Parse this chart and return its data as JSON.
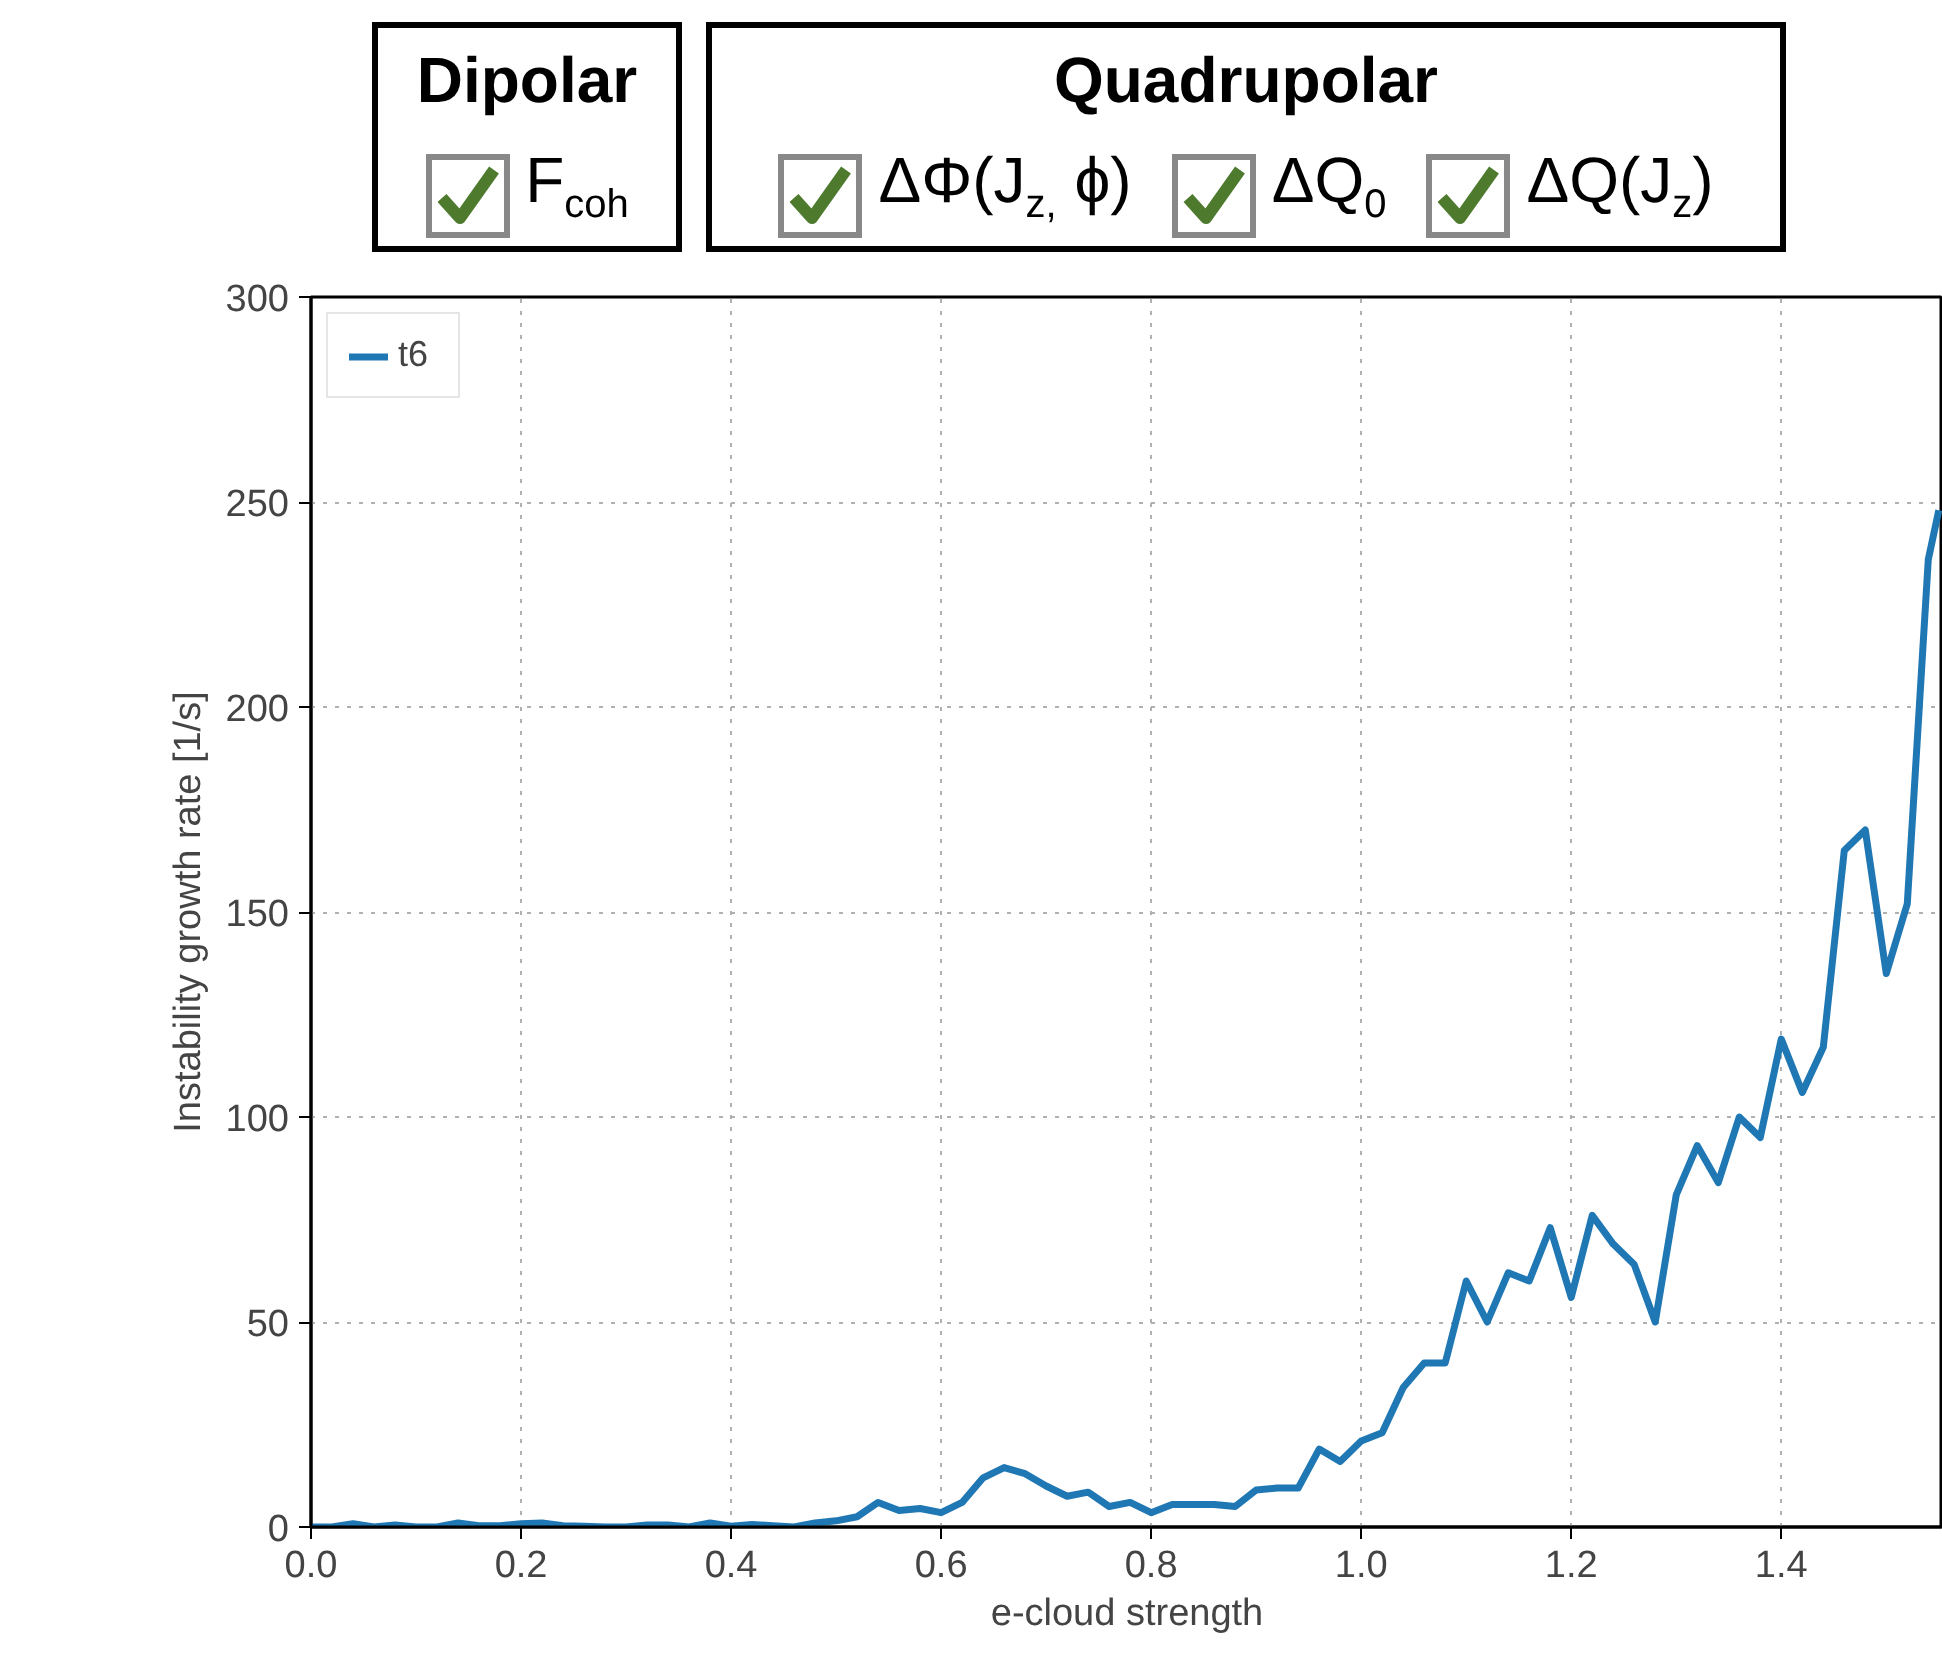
{
  "chart_data": {
    "type": "line",
    "xlabel": "e-cloud strength",
    "ylabel": "Instability growth rate [1/s]",
    "annotations": [
      "Dipolar",
      "F$_{coh}$",
      "Quadrupolar",
      "ΔΦ(J$_{z,}$ ϕ)",
      "ΔQ$_{0}$",
      "ΔQ(J$_{z}$)"
    ],
    "x": [
      0.0,
      0.02,
      0.04,
      0.06,
      0.08,
      0.1,
      0.12,
      0.14,
      0.16,
      0.18,
      0.2,
      0.22,
      0.24,
      0.26,
      0.28,
      0.3,
      0.32,
      0.34,
      0.36,
      0.38,
      0.4,
      0.42,
      0.44,
      0.46,
      0.48,
      0.5,
      0.52,
      0.54,
      0.56,
      0.58,
      0.6,
      0.62,
      0.64,
      0.66,
      0.68,
      0.7,
      0.72,
      0.74,
      0.76,
      0.78,
      0.8,
      0.82,
      0.84,
      0.86,
      0.88,
      0.9,
      0.92,
      0.94,
      0.96,
      0.98,
      1.0,
      1.02,
      1.04,
      1.06,
      1.08,
      1.1,
      1.12,
      1.14,
      1.16,
      1.18,
      1.2,
      1.22,
      1.24,
      1.26,
      1.28,
      1.3,
      1.32,
      1.34,
      1.36,
      1.38,
      1.4,
      1.42,
      1.44,
      1.46,
      1.48,
      1.5,
      1.52,
      1.54,
      1.55
    ],
    "series": [
      {
        "name": "t6",
        "color": "#1f77b4",
        "values": [
          0,
          0,
          0.8,
          0,
          0.5,
          0,
          0,
          1,
          0.3,
          0.3,
          0.8,
          1,
          0.3,
          0.2,
          0,
          0,
          0.5,
          0.5,
          0,
          1,
          0.2,
          0.6,
          0.3,
          0,
          1,
          1.5,
          2.5,
          6,
          4,
          4.5,
          3.5,
          6,
          12,
          14.5,
          13,
          10,
          7.5,
          8.5,
          5,
          6,
          3.5,
          5.5,
          5.5,
          5.5,
          5,
          9,
          9.5,
          9.5,
          19,
          16,
          21,
          23,
          34,
          40,
          40,
          60,
          50,
          62,
          60,
          73,
          56,
          76,
          69,
          64,
          50,
          81,
          93,
          84,
          100,
          95,
          119,
          106,
          117,
          165,
          170,
          135,
          152,
          236,
          248
        ]
      }
    ],
    "xlim": [
      0,
      1.554
    ],
    "ylim": [
      0,
      300
    ],
    "xticks": [
      {
        "value": 0,
        "label": "0.0"
      },
      0.2,
      0.4,
      0.6,
      0.8,
      {
        "value": 1,
        "label": "1.0"
      },
      1.2,
      1.4
    ],
    "yticks": [
      0,
      50,
      100,
      150,
      200,
      250,
      300
    ],
    "grid": true,
    "legend": "top left",
    "line_style": "solid",
    "marker": "none"
  }
}
